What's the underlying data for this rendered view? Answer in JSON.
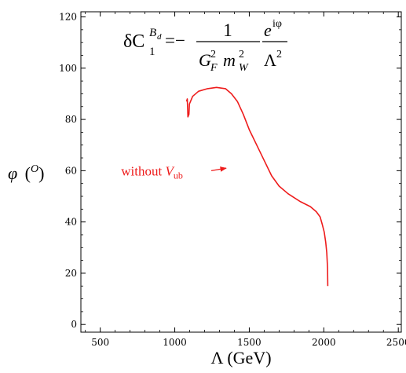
{
  "chart_data": {
    "type": "line",
    "xlabel": "Λ (GeV)",
    "ylabel_symbol": "φ",
    "ylabel_unit": "O",
    "xlim": [
      370,
      2520
    ],
    "ylim": [
      -3,
      122
    ],
    "xticks": [
      500,
      1000,
      1500,
      2000,
      2500
    ],
    "yticks": [
      0,
      20,
      40,
      60,
      80,
      100,
      120
    ],
    "grid": false,
    "formula": {
      "delta_c": "δC",
      "c_sub": "1",
      "c_sup_main": "B",
      "c_sup_sub": "d",
      "equals": "=−",
      "num1": "1",
      "den1_g": "G",
      "den1_g_sub": "F",
      "den1_g_sup": "2",
      "den1_m": "m",
      "den1_m_sub": "W",
      "den1_m_sup": "2",
      "num2_e": "e",
      "num2_sup": "iφ",
      "den2": "Λ",
      "den2_sup": "2"
    },
    "series": [
      {
        "color": "#ee1c1c",
        "dash": false,
        "annotation": {
          "text": "without ",
          "v": "V",
          "sub": "ub",
          "label_anchor": [
            640,
            60
          ],
          "arrow_from": [
            1245,
            60
          ],
          "arrow_to": [
            1345,
            61
          ]
        },
        "points": [
          [
            1079,
            87
          ],
          [
            1084,
            88
          ],
          [
            1088,
            81
          ],
          [
            1095,
            82
          ],
          [
            1098,
            86
          ],
          [
            1120,
            89
          ],
          [
            1160,
            91
          ],
          [
            1220,
            92
          ],
          [
            1280,
            92.5
          ],
          [
            1340,
            92
          ],
          [
            1380,
            90
          ],
          [
            1420,
            87
          ],
          [
            1460,
            82
          ],
          [
            1500,
            76
          ],
          [
            1550,
            70
          ],
          [
            1600,
            64
          ],
          [
            1650,
            58
          ],
          [
            1700,
            54
          ],
          [
            1760,
            51
          ],
          [
            1840,
            48
          ],
          [
            1910,
            46
          ],
          [
            1950,
            44
          ],
          [
            1975,
            42
          ],
          [
            1990,
            39
          ],
          [
            2003,
            36
          ],
          [
            2013,
            32
          ],
          [
            2020,
            28
          ],
          [
            2025,
            22
          ],
          [
            2027,
            15
          ],
          [
            2027,
            15
          ],
          [
            2027,
            15
          ]
        ]
      }
    ]
  }
}
